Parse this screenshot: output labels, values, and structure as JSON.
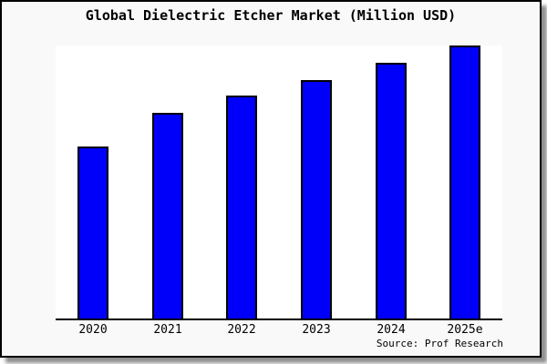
{
  "title": "Global Dielectric Etcher Market (Million USD)",
  "source_label": "Source: Prof Research",
  "colors": {
    "card_background": "#f9f9f9",
    "card_border": "#000000",
    "shadow": "#8f8f8f",
    "plot_background": "#ffffff",
    "axis": "#000000",
    "bar_fill": "#0000fa",
    "bar_border": "#000000",
    "text": "#000000"
  },
  "chart_data": {
    "type": "bar",
    "title": "Global Dielectric Etcher Market (Million USD)",
    "categories": [
      "2020",
      "2021",
      "2022",
      "2023",
      "2024",
      "2025e"
    ],
    "values": [
      63,
      75.3,
      81.7,
      87.3,
      93.7,
      100
    ],
    "value_note": "relative bar heights, max bar = 100; no y-axis tick labels are shown in the chart",
    "xlabel": "",
    "ylabel": "",
    "ylim": [
      0,
      100
    ],
    "grid": false,
    "legend_position": "none",
    "bar_color": "#0000fa",
    "bar_border_color": "#000000",
    "source": "Source: Prof Research"
  }
}
